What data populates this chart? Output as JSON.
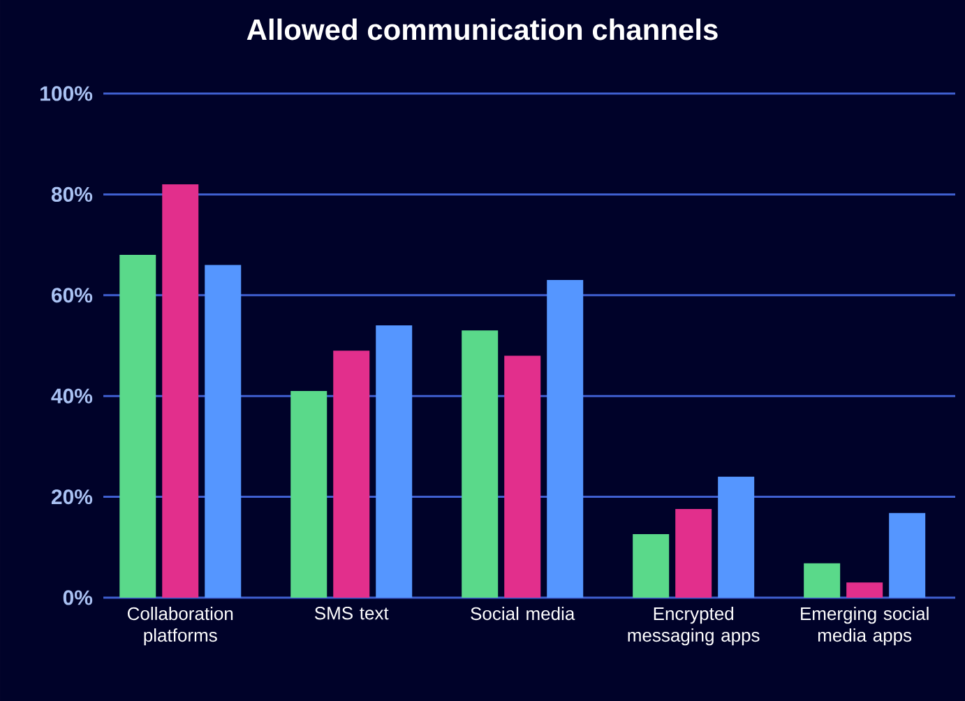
{
  "chart_data": {
    "type": "bar",
    "title": "Allowed communication channels",
    "categories": [
      "Collaboration platforms",
      "SMS text",
      "Social media",
      "Encrypted messaging apps",
      "Emerging social media apps"
    ],
    "series": [
      {
        "color": "#5ad98a",
        "values": [
          68,
          41,
          53,
          12.6,
          6.8
        ]
      },
      {
        "color": "#e22f8c",
        "values": [
          82,
          49,
          48,
          17.6,
          3
        ]
      },
      {
        "color": "#5596ff",
        "values": [
          66,
          54,
          63,
          24,
          16.8
        ]
      }
    ],
    "ylim": [
      0,
      100
    ],
    "yticks": [
      {
        "value": 0,
        "label": "0%"
      },
      {
        "value": 20,
        "label": "20%"
      },
      {
        "value": 40,
        "label": "40%"
      },
      {
        "value": 60,
        "label": "60%"
      },
      {
        "value": 80,
        "label": "80%"
      },
      {
        "value": 100,
        "label": "100%"
      }
    ],
    "grid": "y"
  }
}
